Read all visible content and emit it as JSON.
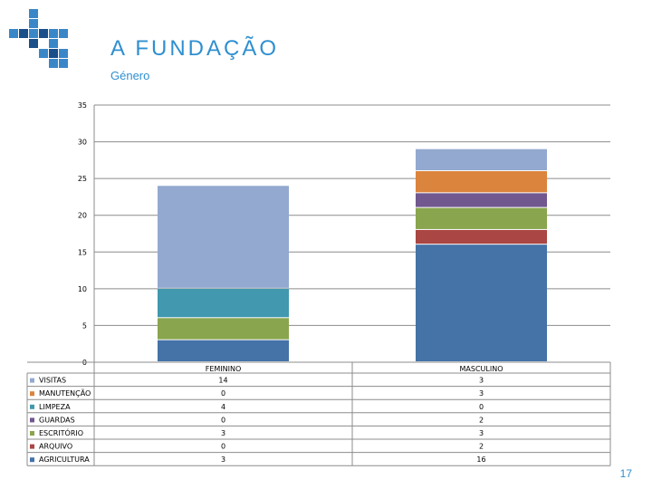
{
  "header": {
    "title": "A FUNDAÇÃO",
    "subtitle": "Género"
  },
  "page_number": "17",
  "colors": {
    "title": "#2f8fd0",
    "logo_light": "#3a87c8",
    "logo_dark": "#1a4f8a"
  },
  "chart_data": {
    "type": "bar",
    "stacked": true,
    "categories": [
      "FEMININO",
      "MASCULINO"
    ],
    "ylim": [
      0,
      35
    ],
    "yticks": [
      0,
      5,
      10,
      15,
      20,
      25,
      30,
      35
    ],
    "grid": true,
    "legend_position": "bottom (data table)",
    "series": [
      {
        "name": "AGRICULTURA",
        "values": [
          3,
          16
        ],
        "color": "#4572a7"
      },
      {
        "name": "ARQUIVO",
        "values": [
          0,
          2
        ],
        "color": "#aa4643"
      },
      {
        "name": "ESCRITÓRIO",
        "values": [
          3,
          3
        ],
        "color": "#89a54e"
      },
      {
        "name": "GUARDAS",
        "values": [
          0,
          2
        ],
        "color": "#71588f"
      },
      {
        "name": "LIMPEZA",
        "values": [
          4,
          0
        ],
        "color": "#4198af"
      },
      {
        "name": "MANUTENÇÃO",
        "values": [
          0,
          3
        ],
        "color": "#db843d"
      },
      {
        "name": "VISITAS",
        "values": [
          14,
          3
        ],
        "color": "#93a9cf"
      }
    ],
    "table_order": [
      "VISITAS",
      "MANUTENÇÃO",
      "LIMPEZA",
      "GUARDAS",
      "ESCRITÓRIO",
      "ARQUIVO",
      "AGRICULTURA"
    ]
  }
}
